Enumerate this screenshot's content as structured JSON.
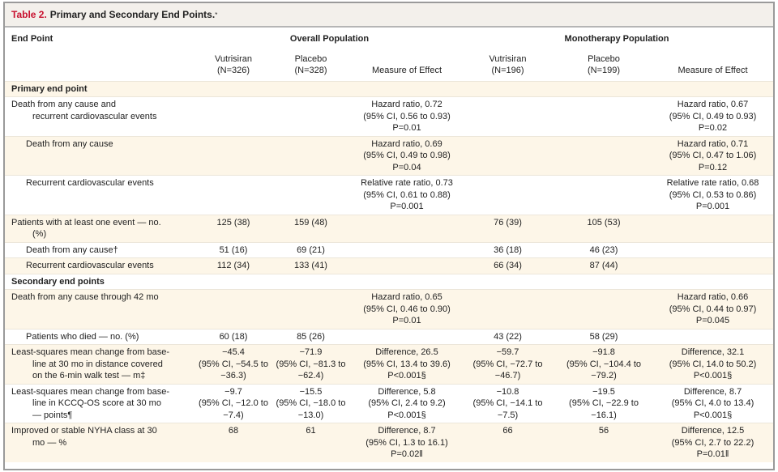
{
  "title": {
    "label": "Table 2.",
    "text": "Primary and Secondary End Points.",
    "footnote_mark": "*"
  },
  "colors": {
    "title_red": "#c8102e",
    "row_cream": "#fdf6e8",
    "title_bar": "#f3f0eb"
  },
  "header": {
    "end_point": "End Point",
    "overall": "Overall Population",
    "monotherapy": "Monotherapy Population",
    "columns": [
      "Vutrisiran\n(N=326)",
      "Placebo\n(N=328)",
      "Measure of Effect",
      "Vutrisiran\n(N=196)",
      "Placebo\n(N=199)",
      "Measure of Effect"
    ]
  },
  "rows": [
    {
      "section": true,
      "label": "Primary end point",
      "cream": true
    },
    {
      "label": "Death from any cause and\nrecurrent cardiovascular events",
      "indent": 0,
      "cream": false,
      "cells": [
        "",
        "",
        "Hazard ratio, 0.72\n(95% CI, 0.56 to 0.93)\nP=0.01",
        "",
        "",
        "Hazard ratio, 0.67\n(95% CI, 0.49 to 0.93)\nP=0.02"
      ]
    },
    {
      "label": "Death from any cause",
      "indent": 1,
      "cream": true,
      "cells": [
        "",
        "",
        "Hazard ratio, 0.69\n(95% CI, 0.49 to 0.98)\nP=0.04",
        "",
        "",
        "Hazard ratio, 0.71\n(95% CI, 0.47 to 1.06)\nP=0.12"
      ]
    },
    {
      "label": "Recurrent cardiovascular events",
      "indent": 1,
      "cream": false,
      "cells": [
        "",
        "",
        "Relative rate ratio, 0.73\n(95% CI, 0.61 to 0.88)\nP=0.001",
        "",
        "",
        "Relative rate ratio, 0.68\n(95% CI, 0.53 to 0.86)\nP=0.001"
      ]
    },
    {
      "label": "Patients with at least one event — no.\n(%)",
      "indent": 0,
      "cream": true,
      "cells": [
        "125 (38)",
        "159 (48)",
        "",
        "76 (39)",
        "105 (53)",
        ""
      ]
    },
    {
      "label": "Death from any cause†",
      "indent": 1,
      "cream": false,
      "cells": [
        "51 (16)",
        "69 (21)",
        "",
        "36 (18)",
        "46 (23)",
        ""
      ]
    },
    {
      "label": "Recurrent cardiovascular events",
      "indent": 1,
      "cream": true,
      "cells": [
        "112 (34)",
        "133 (41)",
        "",
        "66 (34)",
        "87 (44)",
        ""
      ]
    },
    {
      "section": true,
      "label": "Secondary end points",
      "cream": false
    },
    {
      "label": "Death from any cause through 42 mo",
      "indent": 0,
      "cream": true,
      "cells": [
        "",
        "",
        "Hazard ratio, 0.65\n(95% CI, 0.46 to 0.90)\nP=0.01",
        "",
        "",
        "Hazard ratio, 0.66\n(95% CI, 0.44 to 0.97)\nP=0.045"
      ]
    },
    {
      "label": "Patients who died — no. (%)",
      "indent": 1,
      "cream": false,
      "cells": [
        "60 (18)",
        "85 (26)",
        "",
        "43 (22)",
        "58 (29)",
        ""
      ]
    },
    {
      "label": "Least-squares mean change from base-\nline at 30 mo in distance covered\non the 6-min walk test — m‡",
      "indent": 0,
      "cream": true,
      "cells": [
        "−45.4\n(95% CI, −54.5 to\n−36.3)",
        "−71.9\n(95% CI, −81.3 to\n−62.4)",
        "Difference, 26.5\n(95% CI, 13.4 to 39.6)\nP<0.001§",
        "−59.7\n(95% CI, −72.7 to\n−46.7)",
        "−91.8\n(95% CI, −104.4 to\n−79.2)",
        "Difference, 32.1\n(95% CI, 14.0 to 50.2)\nP<0.001§"
      ]
    },
    {
      "label": "Least-squares mean change from base-\nline in KCCQ-OS score at 30 mo\n— points¶",
      "indent": 0,
      "cream": false,
      "cells": [
        "−9.7\n(95% CI, −12.0 to\n−7.4)",
        "−15.5\n(95% CI, −18.0 to\n−13.0)",
        "Difference, 5.8\n(95% CI, 2.4 to 9.2)\nP<0.001§",
        "−10.8\n(95% CI, −14.1 to\n−7.5)",
        "−19.5\n(95% CI, −22.9 to\n−16.1)",
        "Difference, 8.7\n(95% CI, 4.0 to 13.4)\nP<0.001§"
      ]
    },
    {
      "label": "Improved or stable NYHA class at 30\nmo — %",
      "indent": 0,
      "cream": true,
      "cells": [
        "68",
        "61",
        "Difference, 8.7\n(95% CI, 1.3 to 16.1)\nP=0.02‖",
        "66",
        "56",
        "Difference, 12.5\n(95% CI, 2.7 to 22.2)\nP=0.01‖"
      ]
    }
  ]
}
